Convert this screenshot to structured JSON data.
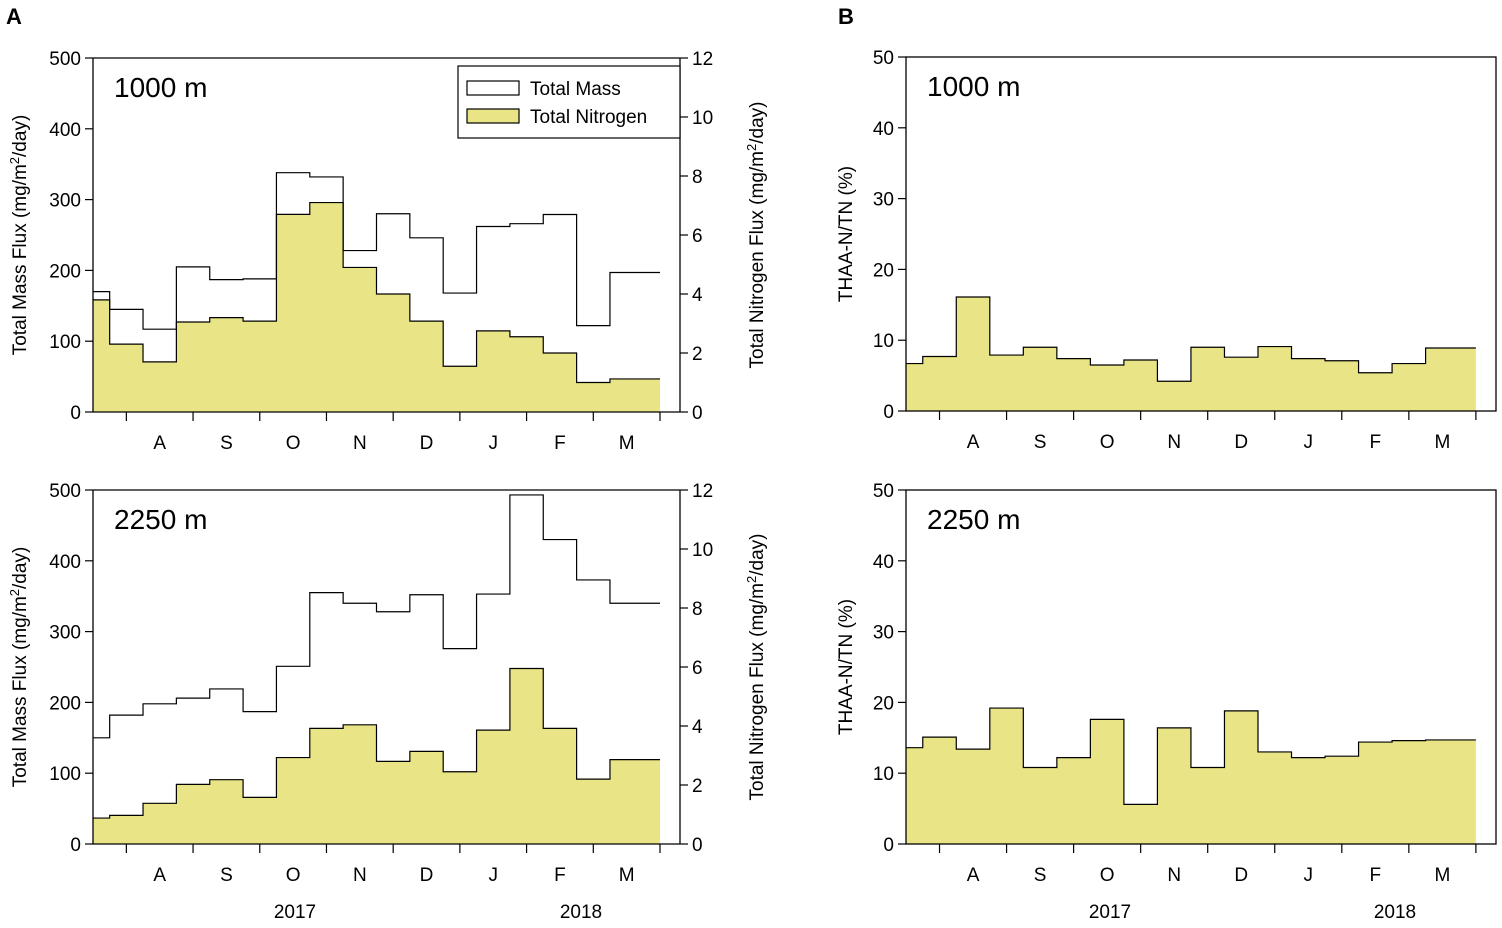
{
  "panel_labels": {
    "a": "A",
    "b": "B"
  },
  "year_labels": {
    "left": [
      "2017",
      "2018"
    ],
    "right": [
      "2017",
      "2018"
    ]
  },
  "legend": {
    "total_mass": "Total Mass",
    "total_nitrogen": "Total Nitrogen"
  },
  "colors": {
    "nitrogen_fill": "#e9e485",
    "mass_line": "#000000"
  },
  "month_ticks": [
    "A",
    "S",
    "O",
    "N",
    "D",
    "J",
    "F",
    "M"
  ],
  "chart_data": [
    {
      "id": "A-1000",
      "type": "step-area",
      "depth_label": "1000 m",
      "ylabel_left": "Total Mass Flux (mg/m²/day)",
      "ylabel_right": "Total Nitrogen Flux (mg/m²/day)",
      "ylim_left": [
        0,
        500
      ],
      "ylim_right": [
        0,
        12
      ],
      "yticks_left": [
        "0",
        "100",
        "200",
        "300",
        "400",
        "500"
      ],
      "yticks_right": [
        "0",
        "2",
        "4",
        "6",
        "8",
        "10",
        "12"
      ],
      "xlim": [
        0,
        17.6
      ],
      "x_edges": [
        0,
        0.5,
        1.5,
        2.5,
        3.5,
        4.5,
        5.5,
        6.5,
        7.5,
        8.5,
        9.5,
        10.5,
        11.5,
        12.5,
        13.5,
        14.5,
        15.5,
        16.5,
        17.0
      ],
      "series": [
        {
          "name": "Total Mass",
          "axis": "left",
          "values": [
            170,
            145,
            117,
            205,
            187,
            188,
            338,
            332,
            228,
            280,
            246,
            168,
            262,
            266,
            279,
            122,
            197,
            197
          ]
        },
        {
          "name": "Total Nitrogen",
          "axis": "right",
          "values": [
            3.8,
            2.3,
            1.7,
            3.05,
            3.2,
            3.08,
            6.7,
            7.1,
            4.9,
            4.0,
            3.08,
            1.55,
            2.75,
            2.55,
            2.0,
            1.0,
            1.12,
            1.12
          ]
        }
      ],
      "month_tick_x": [
        2,
        4,
        6,
        8,
        10,
        12,
        14,
        16
      ]
    },
    {
      "id": "A-2250",
      "type": "step-area",
      "depth_label": "2250 m",
      "ylabel_left": "Total Mass Flux (mg/m²/day)",
      "ylabel_right": "Total Nitrogen Flux (mg/m²/day)",
      "ylim_left": [
        0,
        500
      ],
      "ylim_right": [
        0,
        12
      ],
      "yticks_left": [
        "0",
        "100",
        "200",
        "300",
        "400",
        "500"
      ],
      "yticks_right": [
        "0",
        "2",
        "4",
        "6",
        "8",
        "10",
        "12"
      ],
      "xlim": [
        0,
        17.6
      ],
      "x_edges": [
        0,
        0.5,
        1.5,
        2.5,
        3.5,
        4.5,
        5.5,
        6.5,
        7.5,
        8.5,
        9.5,
        10.5,
        11.5,
        12.5,
        13.5,
        14.5,
        15.5,
        16.5,
        17.0
      ],
      "series": [
        {
          "name": "Total Mass",
          "axis": "left",
          "values": [
            150,
            182,
            198,
            206,
            219,
            187,
            251,
            355,
            340,
            328,
            352,
            276,
            353,
            493,
            430,
            373,
            340,
            340
          ]
        },
        {
          "name": "Total Nitrogen",
          "axis": "right",
          "values": [
            0.88,
            0.97,
            1.38,
            2.02,
            2.18,
            1.58,
            2.93,
            3.92,
            4.04,
            2.8,
            3.14,
            2.45,
            3.86,
            5.95,
            3.92,
            2.2,
            2.86,
            2.86
          ]
        }
      ],
      "month_tick_x": [
        2,
        4,
        6,
        8,
        10,
        12,
        14,
        16
      ]
    },
    {
      "id": "B-1000",
      "type": "step-area",
      "depth_label": "1000 m",
      "ylabel": "THAA-N/TN (%)",
      "ylim": [
        0,
        50
      ],
      "yticks": [
        "0",
        "10",
        "20",
        "30",
        "40",
        "50"
      ],
      "xlim": [
        0,
        17.6
      ],
      "x_edges": [
        0,
        0.5,
        1.5,
        2.5,
        3.5,
        4.5,
        5.5,
        6.5,
        7.5,
        8.5,
        9.5,
        10.5,
        11.5,
        12.5,
        13.5,
        14.5,
        15.5,
        16.5,
        17.0
      ],
      "series": [
        {
          "name": "THAA-N/TN",
          "values": [
            6.7,
            7.7,
            16.1,
            7.9,
            9.0,
            7.4,
            6.5,
            7.2,
            4.2,
            9.0,
            7.6,
            9.1,
            7.4,
            7.1,
            5.4,
            6.7,
            8.9,
            8.9
          ]
        }
      ],
      "month_tick_x": [
        2,
        4,
        6,
        8,
        10,
        12,
        14,
        16
      ]
    },
    {
      "id": "B-2250",
      "type": "step-area",
      "depth_label": "2250 m",
      "ylabel": "THAA-N/TN (%)",
      "ylim": [
        0,
        50
      ],
      "yticks": [
        "0",
        "10",
        "20",
        "30",
        "40",
        "50"
      ],
      "xlim": [
        0,
        17.6
      ],
      "x_edges": [
        0,
        0.5,
        1.5,
        2.5,
        3.5,
        4.5,
        5.5,
        6.5,
        7.5,
        8.5,
        9.5,
        10.5,
        11.5,
        12.5,
        13.5,
        14.5,
        15.5,
        16.5,
        17.0
      ],
      "series": [
        {
          "name": "THAA-N/TN",
          "values": [
            13.6,
            15.1,
            13.4,
            19.2,
            10.8,
            12.2,
            17.6,
            5.6,
            16.4,
            10.8,
            18.8,
            13.0,
            12.2,
            12.4,
            14.4,
            14.6,
            14.7,
            14.7
          ]
        }
      ],
      "month_tick_x": [
        2,
        4,
        6,
        8,
        10,
        12,
        14,
        16
      ]
    }
  ]
}
